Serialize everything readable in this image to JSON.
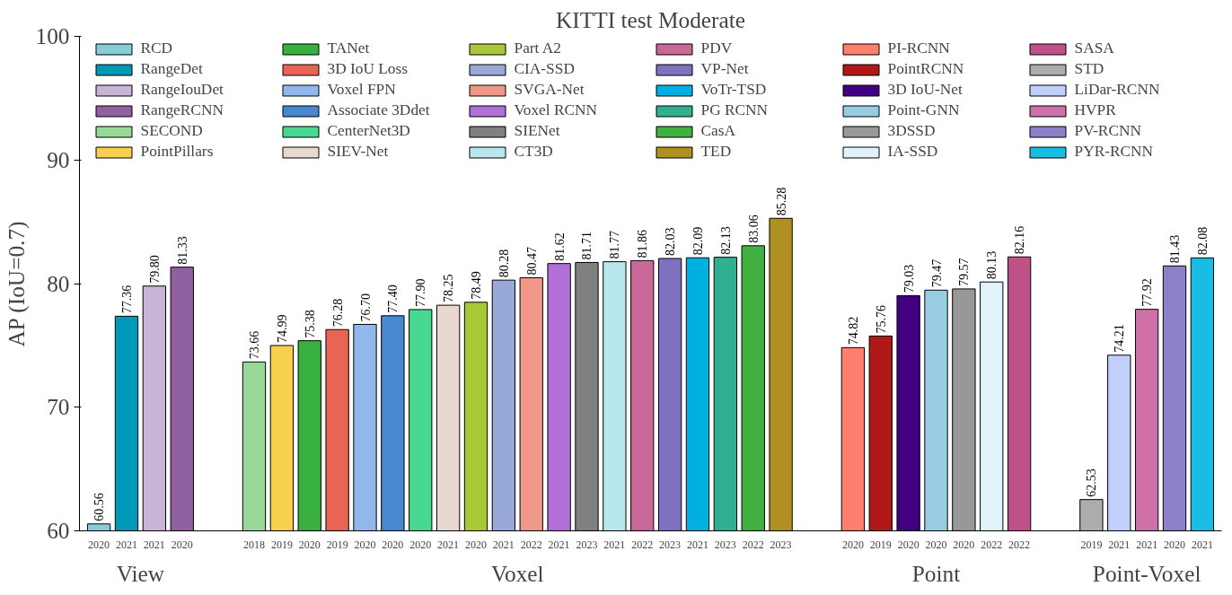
{
  "chart_data": [
    {
      "type": "bar",
      "ylabel": "AP (IoU=0.7)",
      "xlabel": "View",
      "categories": [
        "2020",
        "2021",
        "2021",
        "2020"
      ],
      "ylim": [
        60,
        100
      ],
      "yticks": [
        60,
        70,
        80,
        90,
        100
      ],
      "data_labels": true,
      "legend": "top",
      "grid": false,
      "series": [
        {
          "name": "RCD",
          "color": "#88ccd8",
          "values": [
            60.56,
            null,
            null,
            null
          ]
        },
        {
          "name": "RangeDet",
          "color": "#0098b8",
          "values": [
            null,
            77.36,
            null,
            null
          ]
        },
        {
          "name": "RangeIouDet",
          "color": "#c8b4d4",
          "values": [
            null,
            null,
            79.8,
            null
          ],
          "value_labels": [
            null,
            null,
            "79.80",
            null
          ]
        },
        {
          "name": "RangeRCNN",
          "color": "#9060a0",
          "values": [
            null,
            null,
            null,
            81.33
          ]
        }
      ]
    },
    {
      "type": "bar",
      "title": "KITTI test Moderate",
      "legend": "top",
      "xlabel": "Voxel",
      "categories": [
        "2018",
        "2019",
        "2020",
        "2019",
        "2020",
        "2020",
        "2020",
        "2021",
        "2020",
        "2021",
        "2022",
        "2021",
        "2023",
        "2021",
        "2022",
        "2023",
        "2021",
        "2023",
        "2022",
        "2023"
      ],
      "ylim": [
        60,
        100
      ],
      "tick_labels": "x",
      "data_labels": true,
      "series": [
        {
          "name": "SECOND",
          "color": "#98d898",
          "values": [
            73.66,
            null,
            null,
            null,
            null,
            null,
            null,
            null,
            null,
            null,
            null,
            null,
            null,
            null,
            null,
            null,
            null,
            null,
            null,
            null
          ]
        },
        {
          "name": "PointPillars",
          "color": "#f8d050",
          "values": [
            null,
            74.99,
            null,
            null,
            null,
            null,
            null,
            null,
            null,
            null,
            null,
            null,
            null,
            null,
            null,
            null,
            null,
            null,
            null,
            null
          ]
        },
        {
          "name": "TANet",
          "color": "#38b040",
          "values": [
            null,
            null,
            75.38,
            null,
            null,
            null,
            null,
            null,
            null,
            null,
            null,
            null,
            null,
            null,
            null,
            null,
            null,
            null,
            null,
            null
          ]
        },
        {
          "name": "3D IoU Loss",
          "color": "#e86454",
          "values": [
            null,
            null,
            null,
            76.28,
            null,
            null,
            null,
            null,
            null,
            null,
            null,
            null,
            null,
            null,
            null,
            null,
            null,
            null,
            null,
            null
          ]
        },
        {
          "name": "Voxel FPN",
          "color": "#90b8ec",
          "values": [
            null,
            null,
            null,
            null,
            76.7,
            null,
            null,
            null,
            null,
            null,
            null,
            null,
            null,
            null,
            null,
            null,
            null,
            null,
            null,
            null
          ],
          "value_labels": [
            null,
            null,
            null,
            null,
            "76.70",
            null,
            null,
            null,
            null,
            null,
            null,
            null,
            null,
            null,
            null,
            null,
            null,
            null,
            null,
            null
          ]
        },
        {
          "name": "Associate 3Ddet",
          "color": "#4888d0",
          "values": [
            null,
            null,
            null,
            null,
            null,
            77.4,
            null,
            null,
            null,
            null,
            null,
            null,
            null,
            null,
            null,
            null,
            null,
            null,
            null,
            null
          ],
          "value_labels": [
            null,
            null,
            null,
            null,
            null,
            "77.40",
            null,
            null,
            null,
            null,
            null,
            null,
            null,
            null,
            null,
            null,
            null,
            null,
            null,
            null
          ]
        },
        {
          "name": "CenterNet3D",
          "color": "#48d890",
          "values": [
            null,
            null,
            null,
            null,
            null,
            null,
            77.9,
            null,
            null,
            null,
            null,
            null,
            null,
            null,
            null,
            null,
            null,
            null,
            null,
            null
          ],
          "value_labels": [
            null,
            null,
            null,
            null,
            null,
            null,
            "77.90",
            null,
            null,
            null,
            null,
            null,
            null,
            null,
            null,
            null,
            null,
            null,
            null,
            null
          ]
        },
        {
          "name": "SIEV-Net",
          "color": "#e8d8d0",
          "values": [
            null,
            null,
            null,
            null,
            null,
            null,
            null,
            78.25,
            null,
            null,
            null,
            null,
            null,
            null,
            null,
            null,
            null,
            null,
            null,
            null
          ]
        },
        {
          "name": "Part A2",
          "color": "#a8c838",
          "values": [
            null,
            null,
            null,
            null,
            null,
            null,
            null,
            null,
            78.49,
            null,
            null,
            null,
            null,
            null,
            null,
            null,
            null,
            null,
            null,
            null
          ]
        },
        {
          "name": "CIA-SSD",
          "color": "#98a8d8",
          "values": [
            null,
            null,
            null,
            null,
            null,
            null,
            null,
            null,
            null,
            80.28,
            null,
            null,
            null,
            null,
            null,
            null,
            null,
            null,
            null,
            null
          ]
        },
        {
          "name": "SVGA-Net",
          "color": "#f09888",
          "values": [
            null,
            null,
            null,
            null,
            null,
            null,
            null,
            null,
            null,
            null,
            80.47,
            null,
            null,
            null,
            null,
            null,
            null,
            null,
            null,
            null
          ]
        },
        {
          "name": "Voxel RCNN",
          "color": "#b070d8",
          "values": [
            null,
            null,
            null,
            null,
            null,
            null,
            null,
            null,
            null,
            null,
            null,
            81.62,
            null,
            null,
            null,
            null,
            null,
            null,
            null,
            null
          ]
        },
        {
          "name": "SIENet",
          "color": "#808080",
          "values": [
            null,
            null,
            null,
            null,
            null,
            null,
            null,
            null,
            null,
            null,
            null,
            null,
            81.71,
            null,
            null,
            null,
            null,
            null,
            null,
            null
          ]
        },
        {
          "name": "CT3D",
          "color": "#b8e8ee",
          "values": [
            null,
            null,
            null,
            null,
            null,
            null,
            null,
            null,
            null,
            null,
            null,
            null,
            null,
            81.77,
            null,
            null,
            null,
            null,
            null,
            null
          ]
        },
        {
          "name": "PDV",
          "color": "#c86898",
          "values": [
            null,
            null,
            null,
            null,
            null,
            null,
            null,
            null,
            null,
            null,
            null,
            null,
            null,
            null,
            81.86,
            null,
            null,
            null,
            null,
            null
          ]
        },
        {
          "name": "VP-Net",
          "color": "#8070c0",
          "values": [
            null,
            null,
            null,
            null,
            null,
            null,
            null,
            null,
            null,
            null,
            null,
            null,
            null,
            null,
            null,
            82.03,
            null,
            null,
            null,
            null
          ]
        },
        {
          "name": "VoTr-TSD",
          "color": "#00b0e0",
          "values": [
            null,
            null,
            null,
            null,
            null,
            null,
            null,
            null,
            null,
            null,
            null,
            null,
            null,
            null,
            null,
            null,
            82.09,
            null,
            null,
            null
          ]
        },
        {
          "name": "PG RCNN",
          "color": "#30b090",
          "values": [
            null,
            null,
            null,
            null,
            null,
            null,
            null,
            null,
            null,
            null,
            null,
            null,
            null,
            null,
            null,
            null,
            null,
            82.13,
            null,
            null
          ]
        },
        {
          "name": "CasA",
          "color": "#40b040",
          "values": [
            null,
            null,
            null,
            null,
            null,
            null,
            null,
            null,
            null,
            null,
            null,
            null,
            null,
            null,
            null,
            null,
            null,
            null,
            83.06,
            null
          ]
        },
        {
          "name": "TED",
          "color": "#b09020",
          "values": [
            null,
            null,
            null,
            null,
            null,
            null,
            null,
            null,
            null,
            null,
            null,
            null,
            null,
            null,
            null,
            null,
            null,
            null,
            null,
            85.28
          ]
        }
      ]
    },
    {
      "type": "bar",
      "legend": "top",
      "xlabel": "Point",
      "categories": [
        "2020",
        "2019",
        "2020",
        "2020",
        "2020",
        "2022",
        "2022"
      ],
      "ylim": [
        60,
        100
      ],
      "tick_labels": "x",
      "data_labels": true,
      "series": [
        {
          "name": "PI-RCNN",
          "color": "#ff7e6e",
          "values": [
            74.82,
            null,
            null,
            null,
            null,
            null,
            null
          ]
        },
        {
          "name": "PointRCNN",
          "color": "#b01818",
          "values": [
            null,
            75.76,
            null,
            null,
            null,
            null,
            null
          ]
        },
        {
          "name": "3D IoU-Net",
          "color": "#400080",
          "values": [
            null,
            null,
            79.03,
            null,
            null,
            null,
            null
          ]
        },
        {
          "name": "Point-GNN",
          "color": "#98cce0",
          "values": [
            null,
            null,
            null,
            79.47,
            null,
            null,
            null
          ]
        },
        {
          "name": "3DSSD",
          "color": "#989898",
          "values": [
            null,
            null,
            null,
            null,
            79.57,
            null,
            null
          ]
        },
        {
          "name": "IA-SSD",
          "color": "#e0f2fa",
          "values": [
            null,
            null,
            null,
            null,
            null,
            80.13,
            null
          ]
        },
        {
          "name": "SASA",
          "color": "#c05088",
          "values": [
            null,
            null,
            null,
            null,
            null,
            null,
            82.16
          ]
        }
      ]
    },
    {
      "type": "bar",
      "legend": "top",
      "xlabel": "Point-Voxel",
      "categories": [
        "2019",
        "2021",
        "2021",
        "2020",
        "2021"
      ],
      "ylim": [
        60,
        100
      ],
      "tick_labels": "x",
      "data_labels": true,
      "series": [
        {
          "name": "STD",
          "color": "#acacac",
          "values": [
            62.53,
            null,
            null,
            null,
            null
          ]
        },
        {
          "name": "LiDar-RCNN",
          "color": "#c0d0fa",
          "values": [
            null,
            74.21,
            null,
            null,
            null
          ]
        },
        {
          "name": "HVPR",
          "color": "#d070a8",
          "values": [
            null,
            null,
            77.92,
            null,
            null
          ]
        },
        {
          "name": "PV-RCNN",
          "color": "#8c80c8",
          "values": [
            null,
            null,
            null,
            81.43,
            null
          ]
        },
        {
          "name": "PYR-RCNN",
          "color": "#18bce4",
          "values": [
            null,
            null,
            null,
            null,
            82.08
          ]
        }
      ]
    }
  ]
}
